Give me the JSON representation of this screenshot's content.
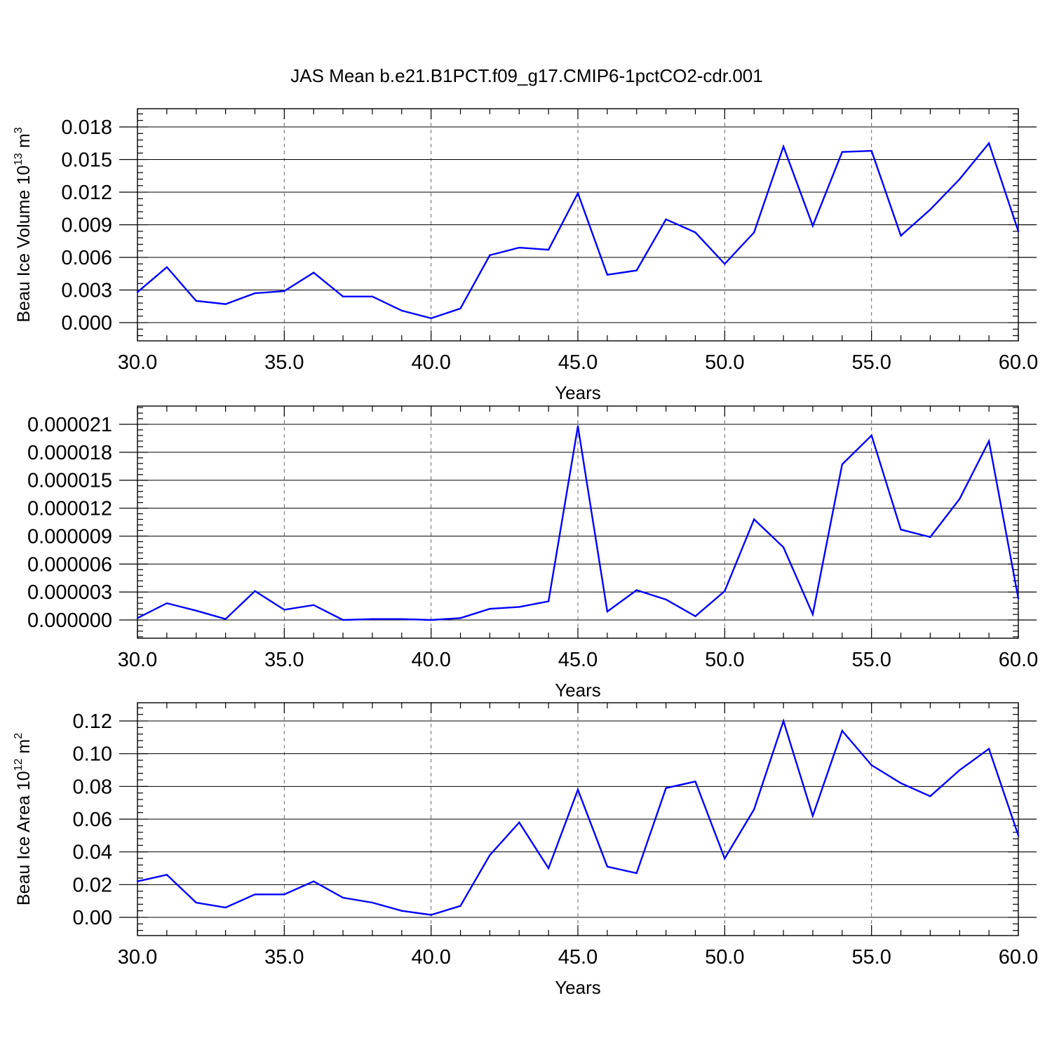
{
  "title": "JAS Mean b.e21.B1PCT.f09_g17.CMIP6-1pctCO2-cdr.001",
  "colors": {
    "line": "#0000ff",
    "grid": "#666666",
    "axis": "#000000"
  },
  "chart_data": [
    {
      "type": "line",
      "xlabel": "Years",
      "ylabel": "Beau Ice Volume 10",
      "ylabel_sup": "13",
      "ylabel_unit": " m",
      "ylabel_unit_sup": "3",
      "xlim": [
        30,
        60
      ],
      "ylim": [
        0,
        0.018
      ],
      "xticks": [
        30,
        35,
        40,
        45,
        50,
        55,
        60
      ],
      "xtick_labels": [
        "30.0",
        "35.0",
        "40.0",
        "45.0",
        "50.0",
        "55.0",
        "60.0"
      ],
      "yticks": [
        0,
        0.003,
        0.006,
        0.009,
        0.012,
        0.015,
        0.018
      ],
      "ytick_labels": [
        "0.000",
        "0.003",
        "0.006",
        "0.009",
        "0.012",
        "0.015",
        "0.018"
      ],
      "grid": "x-dashed",
      "x": [
        30,
        31,
        32,
        33,
        34,
        35,
        36,
        37,
        38,
        39,
        40,
        41,
        42,
        43,
        44,
        45,
        46,
        47,
        48,
        49,
        50,
        51,
        52,
        53,
        54,
        55,
        56,
        57,
        58,
        59,
        60
      ],
      "values": [
        0.0028,
        0.0051,
        0.002,
        0.0017,
        0.0027,
        0.0029,
        0.0046,
        0.0024,
        0.0024,
        0.0011,
        0.0004,
        0.0013,
        0.0062,
        0.0069,
        0.0067,
        0.0119,
        0.0044,
        0.0048,
        0.0095,
        0.0083,
        0.0054,
        0.0083,
        0.0162,
        0.0089,
        0.0157,
        0.0158,
        0.008,
        0.0104,
        0.0132,
        0.0165,
        0.0084
      ]
    },
    {
      "type": "line",
      "xlabel": "Years",
      "ylabel": "",
      "xlim": [
        30,
        60
      ],
      "ylim": [
        0,
        2.1e-05
      ],
      "xticks": [
        30,
        35,
        40,
        45,
        50,
        55,
        60
      ],
      "xtick_labels": [
        "30.0",
        "35.0",
        "40.0",
        "45.0",
        "50.0",
        "55.0",
        "60.0"
      ],
      "yticks": [
        0,
        3e-06,
        6e-06,
        9e-06,
        1.2e-05,
        1.5e-05,
        1.8e-05,
        2.1e-05
      ],
      "ytick_labels": [
        "0.000000",
        "0.000003",
        "0.000006",
        "0.000009",
        "0.000012",
        "0.000015",
        "0.000018",
        "0.000021"
      ],
      "grid": "x-dashed",
      "x": [
        30,
        31,
        32,
        33,
        34,
        35,
        36,
        37,
        38,
        39,
        40,
        41,
        42,
        43,
        44,
        45,
        46,
        47,
        48,
        49,
        50,
        51,
        52,
        53,
        54,
        55,
        56,
        57,
        58,
        59,
        60
      ],
      "values": [
        2e-07,
        1.8e-06,
        1e-06,
        1e-07,
        3.1e-06,
        1.1e-06,
        1.6e-06,
        0.0,
        1e-07,
        1e-07,
        0.0,
        2e-07,
        1.2e-06,
        1.4e-06,
        2e-06,
        2.08e-05,
        9e-07,
        3.2e-06,
        2.2e-06,
        4e-07,
        3.1e-06,
        1.08e-05,
        7.8e-06,
        6e-07,
        1.67e-05,
        1.98e-05,
        9.7e-06,
        8.9e-06,
        1.3e-05,
        1.92e-05,
        2.3e-06
      ]
    },
    {
      "type": "line",
      "xlabel": "Years",
      "ylabel": "Beau Ice Area 10",
      "ylabel_sup": "12",
      "ylabel_unit": " m",
      "ylabel_unit_sup": "2",
      "xlim": [
        30,
        60
      ],
      "ylim": [
        0,
        0.12
      ],
      "xticks": [
        30,
        35,
        40,
        45,
        50,
        55,
        60
      ],
      "xtick_labels": [
        "30.0",
        "35.0",
        "40.0",
        "45.0",
        "50.0",
        "55.0",
        "60.0"
      ],
      "yticks": [
        0,
        0.02,
        0.04,
        0.06,
        0.08,
        0.1,
        0.12
      ],
      "ytick_labels": [
        "0.00",
        "0.02",
        "0.04",
        "0.06",
        "0.08",
        "0.10",
        "0.12"
      ],
      "grid": "x-dashed",
      "x": [
        30,
        31,
        32,
        33,
        34,
        35,
        36,
        37,
        38,
        39,
        40,
        41,
        42,
        43,
        44,
        45,
        46,
        47,
        48,
        49,
        50,
        51,
        52,
        53,
        54,
        55,
        56,
        57,
        58,
        59,
        60
      ],
      "values": [
        0.022,
        0.026,
        0.009,
        0.006,
        0.014,
        0.014,
        0.022,
        0.012,
        0.009,
        0.004,
        0.0015,
        0.007,
        0.038,
        0.058,
        0.03,
        0.078,
        0.031,
        0.027,
        0.079,
        0.083,
        0.036,
        0.066,
        0.12,
        0.062,
        0.114,
        0.093,
        0.082,
        0.074,
        0.09,
        0.103,
        0.05
      ]
    }
  ]
}
